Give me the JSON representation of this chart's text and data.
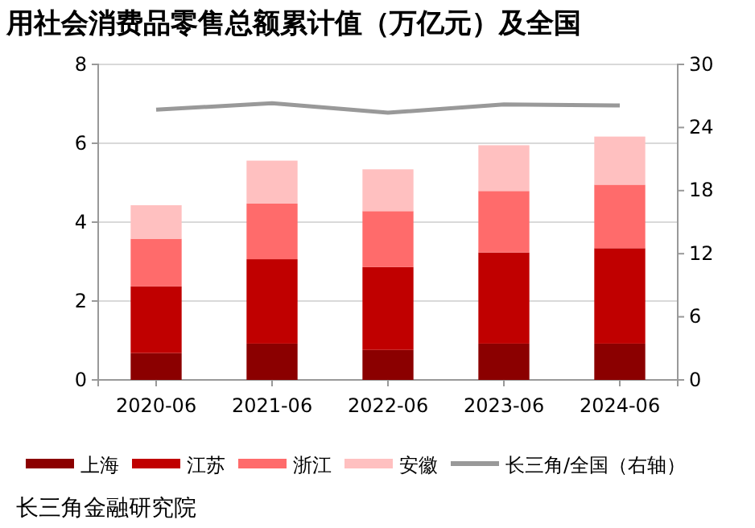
{
  "chart_data": {
    "type": "bar",
    "title": "用社会消费品零售总额累计值（万亿元）及全国",
    "categories": [
      "2020-06",
      "2021-06",
      "2022-06",
      "2023-06",
      "2024-06"
    ],
    "stacked": true,
    "series": [
      {
        "name": "上海",
        "color": "#8b0000",
        "values": [
          0.68,
          0.92,
          0.76,
          0.92,
          0.92
        ]
      },
      {
        "name": "江苏",
        "color": "#c00000",
        "values": [
          1.69,
          2.14,
          2.1,
          2.31,
          2.42
        ]
      },
      {
        "name": "浙江",
        "color": "#ff6b6b",
        "values": [
          1.21,
          1.41,
          1.42,
          1.56,
          1.61
        ]
      },
      {
        "name": "安徽",
        "color": "#ffc0c0",
        "values": [
          0.85,
          1.09,
          1.06,
          1.16,
          1.22
        ]
      },
      {
        "name": "长三角/全国（右轴）",
        "type": "line",
        "axis": "y2",
        "color": "#999999",
        "values": [
          25.7,
          26.3,
          25.4,
          26.2,
          26.1
        ]
      }
    ],
    "ylim": [
      0,
      8
    ],
    "yticks": [
      0,
      2,
      4,
      6,
      8
    ],
    "y2lim": [
      0,
      30
    ],
    "y2ticks": [
      0,
      6,
      12,
      18,
      24,
      30
    ],
    "grid": "y",
    "legend": "bottom",
    "marker": "none",
    "annotations": [
      "长三角金融研究院"
    ]
  }
}
